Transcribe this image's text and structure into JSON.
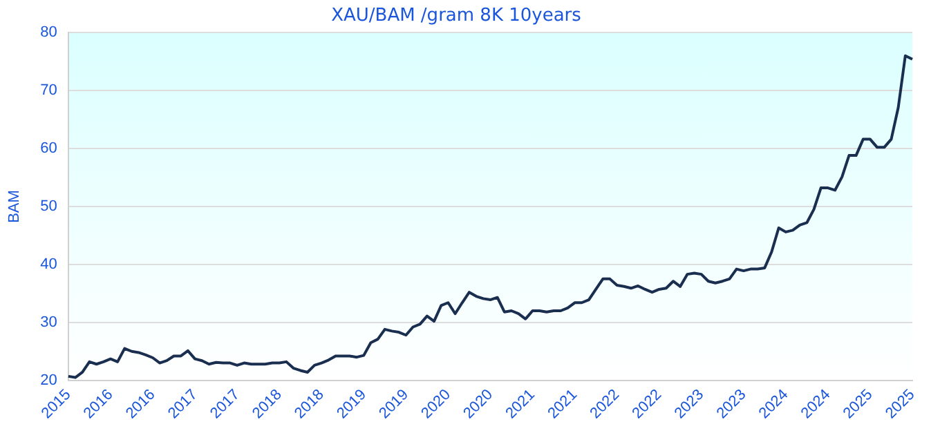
{
  "chart_data": {
    "type": "line",
    "title": "XAU/BAM /gram 8K 10years",
    "ylabel": "BAM",
    "categories": [
      "2015",
      null,
      null,
      null,
      null,
      null,
      "2016",
      null,
      null,
      null,
      null,
      null,
      "2016",
      null,
      null,
      null,
      null,
      null,
      "2017",
      null,
      null,
      null,
      null,
      null,
      "2017",
      null,
      null,
      null,
      null,
      null,
      "2018",
      null,
      null,
      null,
      null,
      null,
      "2018",
      null,
      null,
      null,
      null,
      null,
      "2019",
      null,
      null,
      null,
      null,
      null,
      "2019",
      null,
      null,
      null,
      null,
      null,
      "2020",
      null,
      null,
      null,
      null,
      null,
      "2020",
      null,
      null,
      null,
      null,
      null,
      "2021",
      null,
      null,
      null,
      null,
      null,
      "2021",
      null,
      null,
      null,
      null,
      null,
      "2022",
      null,
      null,
      null,
      null,
      null,
      "2022",
      null,
      null,
      null,
      null,
      null,
      "2023",
      null,
      null,
      null,
      null,
      null,
      "2023",
      null,
      null,
      null,
      null,
      null,
      "2024",
      null,
      null,
      null,
      null,
      null,
      "2024",
      null,
      null,
      null,
      null,
      null,
      "2025",
      null,
      null,
      null,
      null,
      null,
      "2025"
    ],
    "series": [
      {
        "color": "#1a2e50",
        "values": [
          20.7,
          20.5,
          21.4,
          23.2,
          22.8,
          23.2,
          23.7,
          23.2,
          25.5,
          25,
          24.8,
          24.4,
          23.9,
          23,
          23.4,
          24.2,
          24.2,
          25.1,
          23.7,
          23.4,
          22.8,
          23.1,
          23,
          23,
          22.6,
          23,
          22.8,
          22.8,
          22.8,
          23,
          23,
          23.2,
          22.1,
          21.7,
          21.4,
          22.6,
          23,
          23.5,
          24.2,
          24.2,
          24.2,
          24,
          24.3,
          26.5,
          27.1,
          28.8,
          28.5,
          28.3,
          27.8,
          29.2,
          29.7,
          31.1,
          30.2,
          32.9,
          33.4,
          31.5,
          33.4,
          35.2,
          34.5,
          34.1,
          33.9,
          34.3,
          31.8,
          32,
          31.5,
          30.6,
          32,
          32,
          31.8,
          32,
          32,
          32.5,
          33.4,
          33.4,
          33.9,
          35.7,
          37.5,
          37.5,
          36.4,
          36.2,
          35.9,
          36.3,
          35.7,
          35.2,
          35.7,
          35.9,
          37.1,
          36.2,
          38.3,
          38.5,
          38.3,
          37.1,
          36.8,
          37.1,
          37.5,
          39.2,
          38.9,
          39.2,
          39.2,
          39.4,
          42.2,
          46.3,
          45.6,
          45.9,
          46.8,
          47.2,
          49.5,
          53.2,
          53.2,
          52.8,
          55.1,
          58.8,
          58.8,
          61.6,
          61.6,
          60.2,
          60.2,
          61.6,
          67.1,
          76,
          75.4
        ]
      }
    ],
    "ylim": [
      20,
      80
    ],
    "yticks": [
      20,
      30,
      40,
      50,
      60,
      70,
      80
    ],
    "grid": "y",
    "marker": "none",
    "line_style": "solid",
    "legend": false
  }
}
